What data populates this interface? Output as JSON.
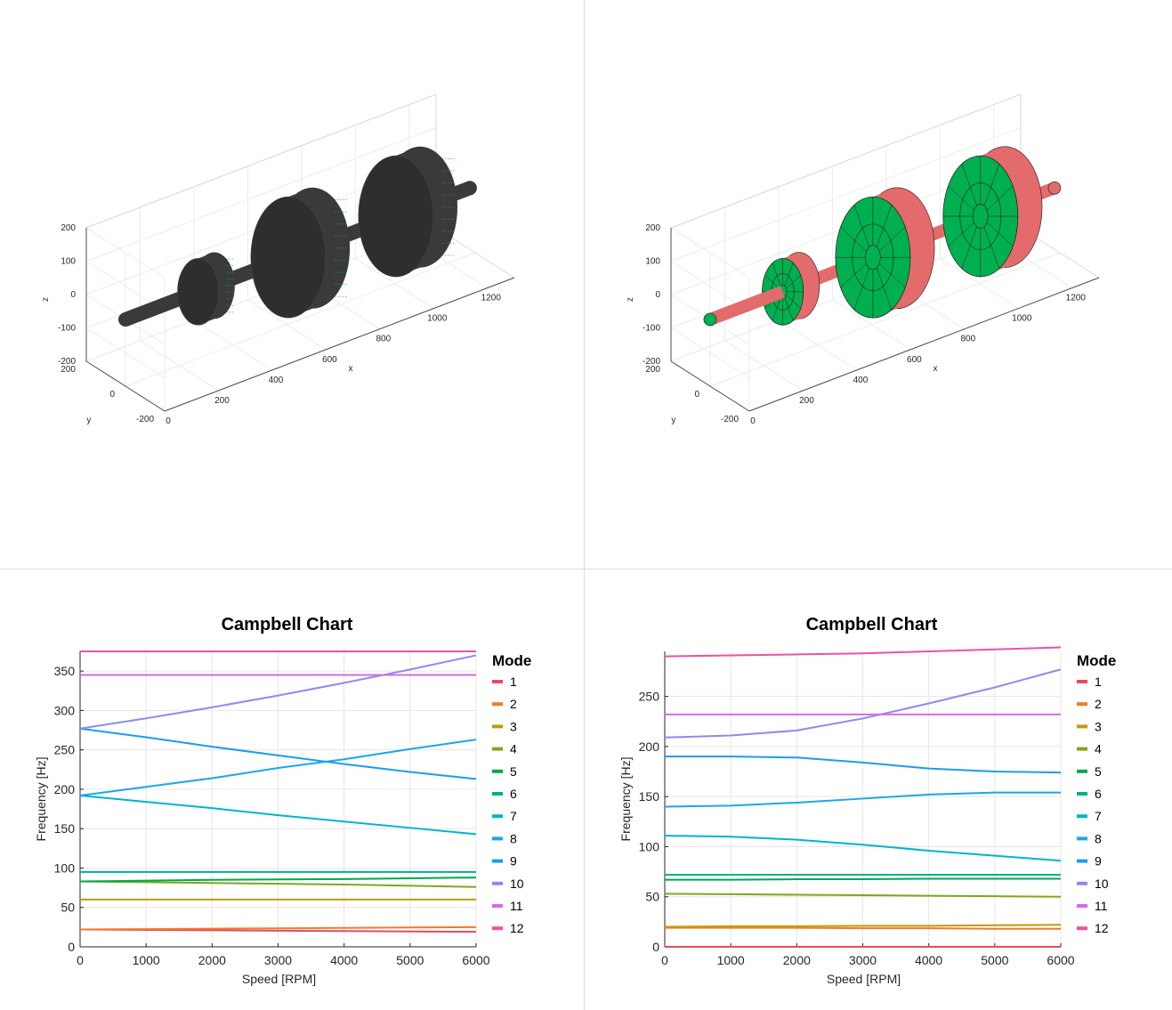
{
  "model_views": [
    {
      "axes": {
        "x_label": "x",
        "y_label": "y",
        "z_label": "z",
        "x_ticks": [
          "0",
          "200",
          "400",
          "600",
          "800",
          "1000",
          "1200"
        ],
        "y_ticks": [
          "-200",
          "0",
          "200"
        ],
        "z_ticks": [
          "-200",
          "-100",
          "0",
          "100",
          "200"
        ]
      },
      "colors": {
        "body": "#3a3a3a",
        "mesh": "#00b050"
      }
    },
    {
      "axes": {
        "x_label": "x",
        "y_label": "y",
        "z_label": "z",
        "x_ticks": [
          "0",
          "200",
          "400",
          "600",
          "800",
          "1000",
          "1200"
        ],
        "y_ticks": [
          "-200",
          "0",
          "200"
        ],
        "z_ticks": [
          "-200",
          "-100",
          "0",
          "100",
          "200"
        ]
      },
      "colors": {
        "face": "#00b050",
        "edge": "#e36b6b"
      }
    }
  ],
  "chart_data": [
    {
      "type": "line",
      "title": "Campbell Chart",
      "xlabel": "Speed [RPM]",
      "ylabel": "Frequency [Hz]",
      "xlim": [
        0,
        6000
      ],
      "ylim": [
        0,
        375
      ],
      "x_ticks": [
        0,
        1000,
        2000,
        3000,
        4000,
        5000,
        6000
      ],
      "y_ticks": [
        0,
        50,
        100,
        150,
        200,
        250,
        300,
        350
      ],
      "grid": true,
      "legend_title": "Mode",
      "legend_position": "right",
      "x": [
        0,
        1000,
        2000,
        3000,
        4000,
        5000,
        6000
      ],
      "series": [
        {
          "name": "1",
          "color": "#e84a5f",
          "values": [
            22,
            21.5,
            21,
            20.5,
            20,
            19.5,
            19
          ]
        },
        {
          "name": "2",
          "color": "#f07c2a",
          "values": [
            22,
            22.5,
            23,
            23.5,
            24,
            24.5,
            25
          ]
        },
        {
          "name": "3",
          "color": "#c79a00",
          "values": [
            60,
            60,
            60,
            60,
            60,
            60,
            60
          ]
        },
        {
          "name": "4",
          "color": "#7fa81a",
          "values": [
            83,
            82,
            81,
            80,
            79,
            77.5,
            76
          ]
        },
        {
          "name": "5",
          "color": "#00a84f",
          "values": [
            83,
            84,
            85,
            85.5,
            86,
            87,
            88
          ]
        },
        {
          "name": "6",
          "color": "#00b08a",
          "values": [
            95,
            95,
            95,
            95,
            95,
            95,
            95
          ]
        },
        {
          "name": "7",
          "color": "#00b4cf",
          "values": [
            192,
            184,
            176,
            167,
            159,
            151,
            143
          ]
        },
        {
          "name": "8",
          "color": "#18a8e8",
          "values": [
            192,
            203,
            214,
            227,
            238,
            251,
            263
          ]
        },
        {
          "name": "9",
          "color": "#1a9cf0",
          "values": [
            277,
            266,
            254,
            243,
            232,
            222,
            213
          ]
        },
        {
          "name": "10",
          "color": "#8a8cf0",
          "values": [
            277,
            290,
            304,
            319,
            335,
            352,
            370
          ]
        },
        {
          "name": "11",
          "color": "#d66ae8",
          "values": [
            345,
            345,
            345,
            345,
            345,
            345,
            345
          ]
        },
        {
          "name": "12",
          "color": "#ef4fa6",
          "values": [
            375,
            375,
            375,
            375,
            375,
            375,
            375
          ]
        }
      ]
    },
    {
      "type": "line",
      "title": "Campbell Chart",
      "xlabel": "Speed [RPM]",
      "ylabel": "Frequency [Hz]",
      "xlim": [
        0,
        6000
      ],
      "ylim": [
        0,
        295
      ],
      "x_ticks": [
        0,
        1000,
        2000,
        3000,
        4000,
        5000,
        6000
      ],
      "y_ticks": [
        0,
        50,
        100,
        150,
        200,
        250
      ],
      "grid": true,
      "legend_title": "Mode",
      "legend_position": "right",
      "x": [
        0,
        1000,
        2000,
        3000,
        4000,
        5000,
        6000
      ],
      "series": [
        {
          "name": "1",
          "color": "#e84a5f",
          "values": [
            0,
            0,
            0,
            0,
            0,
            0,
            0
          ]
        },
        {
          "name": "2",
          "color": "#f07c2a",
          "values": [
            19,
            19,
            19,
            18.5,
            18.5,
            18,
            18
          ]
        },
        {
          "name": "3",
          "color": "#c79a00",
          "values": [
            20,
            20.5,
            20.5,
            21,
            21,
            21.5,
            22
          ]
        },
        {
          "name": "4",
          "color": "#7fa81a",
          "values": [
            53,
            52.5,
            52,
            51.5,
            51,
            50.5,
            50
          ]
        },
        {
          "name": "5",
          "color": "#00a84f",
          "values": [
            67,
            67,
            67.5,
            67.5,
            68,
            68,
            68
          ]
        },
        {
          "name": "6",
          "color": "#00b08a",
          "values": [
            72,
            72,
            72,
            72,
            72,
            72,
            72
          ]
        },
        {
          "name": "7",
          "color": "#00b4cf",
          "values": [
            111,
            110,
            107,
            102,
            96,
            91,
            86
          ]
        },
        {
          "name": "8",
          "color": "#18a8e8",
          "values": [
            140,
            141,
            144,
            148,
            152,
            154,
            154
          ]
        },
        {
          "name": "9",
          "color": "#1a9cf0",
          "values": [
            190,
            190,
            189,
            184,
            178,
            175,
            174
          ]
        },
        {
          "name": "10",
          "color": "#8a8cf0",
          "values": [
            209,
            211,
            216,
            228,
            243,
            259,
            277
          ]
        },
        {
          "name": "11",
          "color": "#d66ae8",
          "values": [
            232,
            232,
            232,
            232,
            232,
            232,
            232
          ]
        },
        {
          "name": "12",
          "color": "#ef4fa6",
          "values": [
            290,
            291,
            292,
            293,
            295,
            297,
            299
          ]
        }
      ]
    }
  ]
}
